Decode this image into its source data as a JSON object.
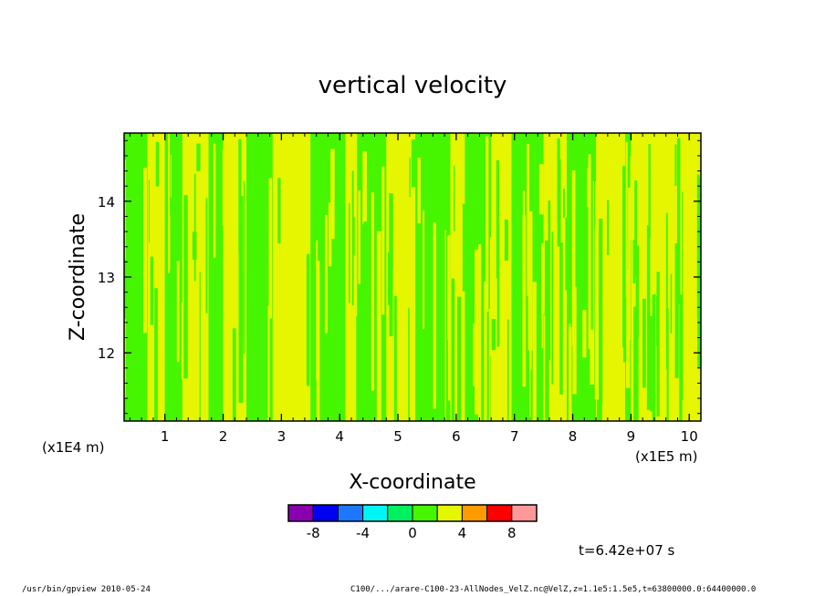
{
  "chart_data": {
    "type": "heatmap",
    "title": "vertical velocity",
    "xlabel": "X-coordinate",
    "ylabel": "Z-coordinate",
    "x_unit": "(x1E5 m)",
    "y_unit": "(x1E4 m)",
    "x_ticks": [
      "1",
      "2",
      "3",
      "4",
      "5",
      "6",
      "7",
      "8",
      "9",
      "10"
    ],
    "y_ticks": [
      "12",
      "13",
      "14"
    ],
    "xlim": [
      0.3,
      10.2
    ],
    "ylim": [
      11.1,
      14.9
    ],
    "field": {
      "x_band_edges": [
        0.3,
        0.7,
        1.0,
        1.3,
        1.75,
        2.0,
        2.4,
        2.85,
        3.5,
        4.1,
        4.3,
        4.8,
        5.3,
        5.9,
        6.15,
        6.6,
        6.95,
        7.5,
        7.9,
        8.4,
        8.9,
        9.0,
        10.2
      ],
      "x_band_values": [
        0,
        2,
        0,
        2,
        0,
        2,
        0,
        2,
        0,
        2,
        0,
        2,
        0,
        2,
        0,
        2,
        0,
        2,
        0,
        2,
        0,
        2
      ],
      "streaks": 140
    },
    "colorbar": {
      "levels": [
        -10,
        -8,
        -6,
        -4,
        -2,
        0,
        2,
        4,
        6,
        8,
        10
      ],
      "colors": [
        "#8a00b0",
        "#0000f0",
        "#1e78ff",
        "#00f5f5",
        "#00f060",
        "#46f500",
        "#e6f500",
        "#ff9b00",
        "#ff0000",
        "#ff9999"
      ],
      "tick_labels": [
        "-8",
        "-4",
        "0",
        "4",
        "8"
      ],
      "tick_values": [
        -8,
        -4,
        0,
        4,
        8
      ]
    },
    "time_label": "t=6.42e+07 s"
  },
  "footer": {
    "left": "/usr/bin/gpview  2010-05-24",
    "right": "C100/.../arare-C100-23-AllNodes_VelZ.nc@VelZ,z=1.1e5:1.5e5,t=63800000.0:64400000.0"
  }
}
